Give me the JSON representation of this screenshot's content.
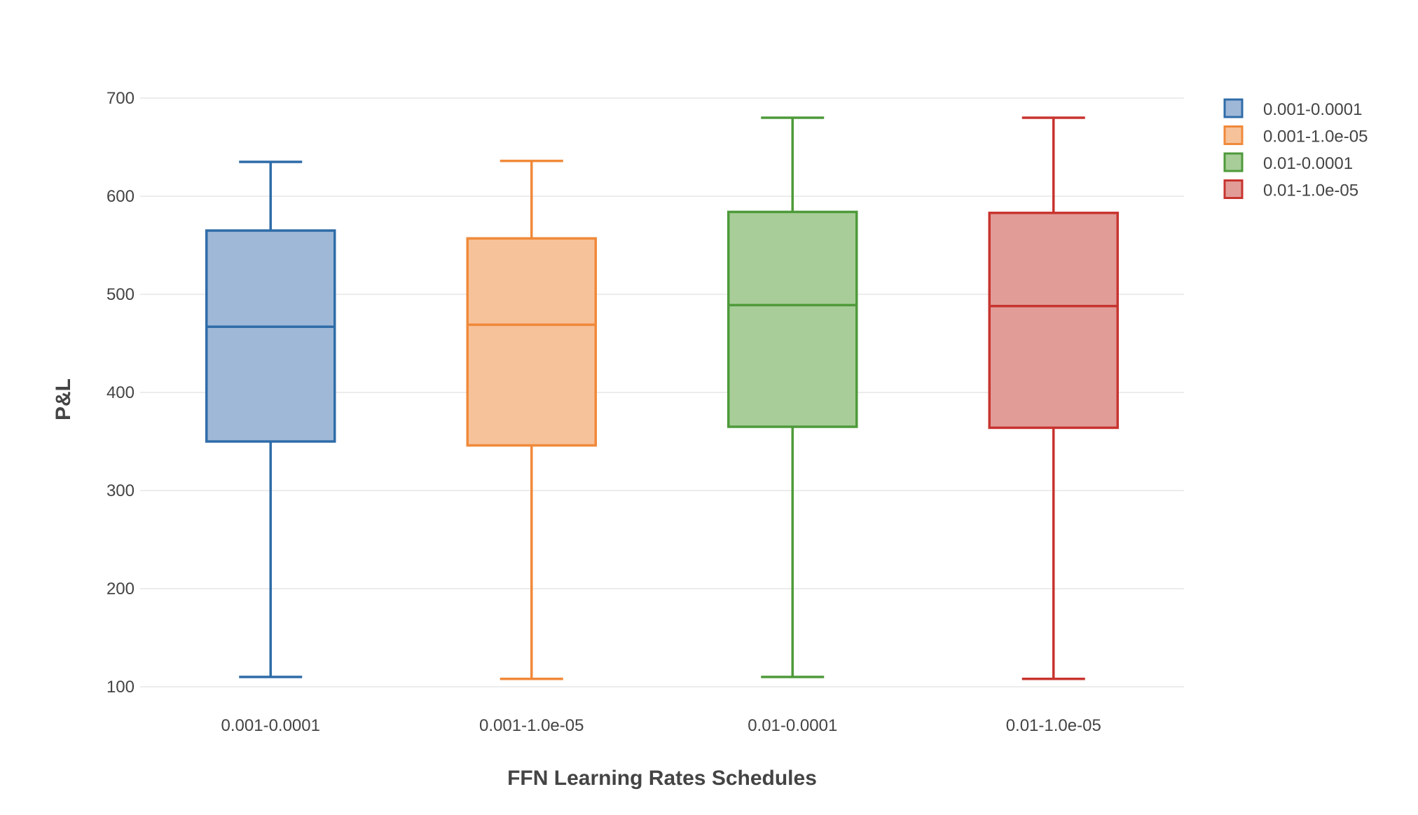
{
  "chart_data": {
    "type": "box",
    "title": "",
    "xlabel": "FFN Learning Rates Schedules",
    "ylabel": "P&L",
    "ylim": [
      100,
      700
    ],
    "yticks": [
      100,
      200,
      300,
      400,
      500,
      600,
      700
    ],
    "grid": true,
    "legend_position": "top-right",
    "categories": [
      "0.001-0.0001",
      "0.001-1.0e-05",
      "0.01-0.0001",
      "0.01-1.0e-05"
    ],
    "series": [
      {
        "name": "0.001-0.0001",
        "color": "#2f6ca8",
        "fill": "#9fb8d8",
        "min": 110,
        "q1": 350,
        "median": 467,
        "q3": 565,
        "max": 635
      },
      {
        "name": "0.001-1.0e-05",
        "color": "#f0893a",
        "fill": "#f6c29a",
        "min": 108,
        "q1": 346,
        "median": 469,
        "q3": 557,
        "max": 636
      },
      {
        "name": "0.01-0.0001",
        "color": "#4e9a3a",
        "fill": "#a8cd99",
        "min": 110,
        "q1": 365,
        "median": 489,
        "q3": 584,
        "max": 680
      },
      {
        "name": "0.01-1.0e-05",
        "color": "#c8342f",
        "fill": "#e19c98",
        "min": 108,
        "q1": 364,
        "median": 488,
        "q3": 583,
        "max": 680
      }
    ]
  }
}
